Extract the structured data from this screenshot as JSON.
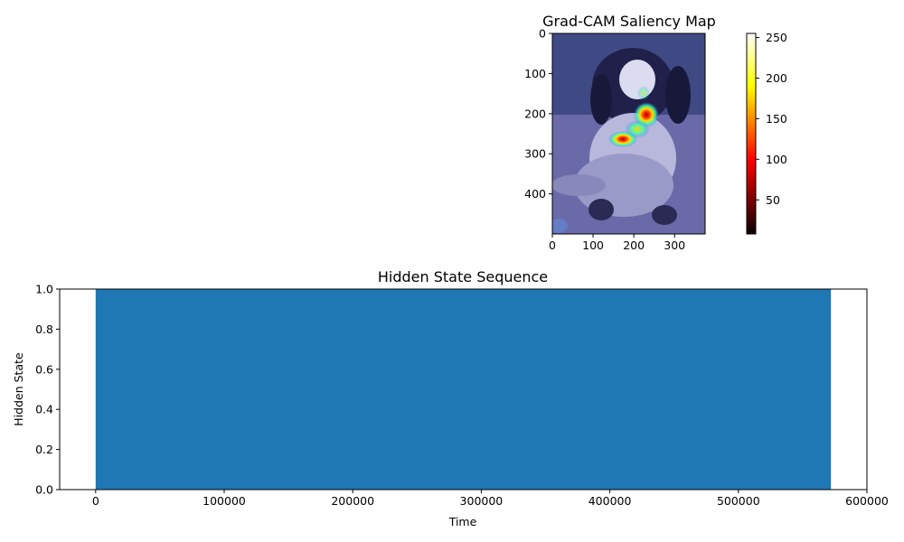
{
  "chart_data": [
    {
      "type": "heatmap",
      "title": "Grad-CAM Saliency Map",
      "image_description": "dog photo with jet-colormap saliency overlay",
      "x_ticks": [
        "0",
        "100",
        "200",
        "300"
      ],
      "y_ticks": [
        "0",
        "100",
        "200",
        "300",
        "400"
      ],
      "xlim": [
        0,
        375
      ],
      "ylim": [
        500,
        0
      ],
      "colorbar": {
        "colormap": "hot",
        "range": [
          8,
          255
        ],
        "ticks": [
          "50",
          "100",
          "150",
          "200",
          "250"
        ],
        "tick_values": [
          50,
          100,
          150,
          200,
          250
        ]
      },
      "hotspots": [
        {
          "x": 232,
          "y": 200,
          "intensity": 1.0
        },
        {
          "x": 175,
          "y": 265,
          "intensity": 0.9
        },
        {
          "x": 215,
          "y": 240,
          "intensity": 0.6
        },
        {
          "x": 220,
          "y": 150,
          "intensity": 0.3
        }
      ]
    },
    {
      "type": "area",
      "title": "Hidden State Sequence",
      "xlabel": "Time",
      "ylabel": "Hidden State",
      "xlim": [
        -28000,
        600000
      ],
      "ylim": [
        0,
        1
      ],
      "x_ticks": [
        "0",
        "100000",
        "200000",
        "300000",
        "400000",
        "500000",
        "600000"
      ],
      "x_tick_values": [
        0,
        100000,
        200000,
        300000,
        400000,
        500000,
        600000
      ],
      "y_ticks": [
        "0.0",
        "0.2",
        "0.4",
        "0.6",
        "0.8",
        "1.0"
      ],
      "y_tick_values": [
        0,
        0.2,
        0.4,
        0.6,
        0.8,
        1.0
      ],
      "series": [
        {
          "x_start": 0,
          "x_end": 572000,
          "value": 1.0,
          "color": "#1f77b4"
        }
      ]
    }
  ]
}
